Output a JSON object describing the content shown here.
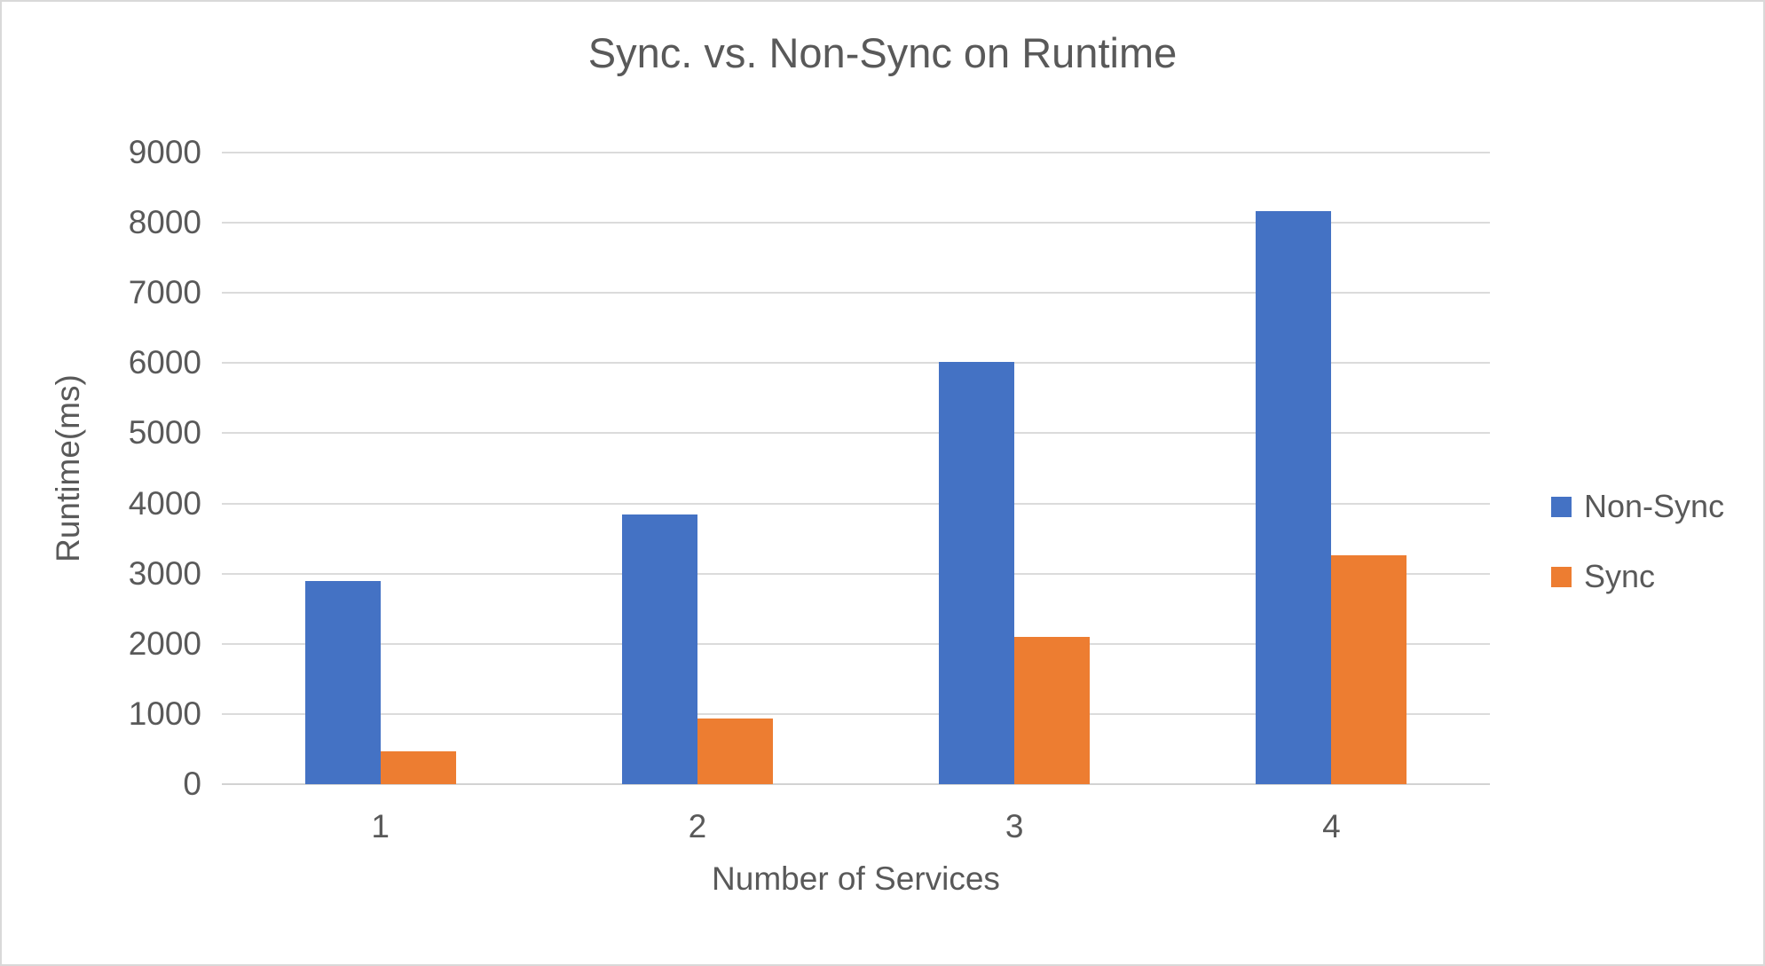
{
  "chart_data": {
    "type": "bar",
    "title": "Sync. vs. Non-Sync on Runtime",
    "xlabel": "Number of Services",
    "ylabel": "Runtime(ms)",
    "categories": [
      "1",
      "2",
      "3",
      "4"
    ],
    "series": [
      {
        "name": "Non-Sync",
        "color": "#4472C4",
        "values": [
          2900,
          3840,
          6020,
          8160
        ]
      },
      {
        "name": "Sync",
        "color": "#ED7D31",
        "values": [
          470,
          930,
          2100,
          3260
        ]
      }
    ],
    "ylim": [
      0,
      9000
    ],
    "ytick_step": 1000,
    "grid": true,
    "legend_position": "right",
    "colors": {
      "text": "#595959",
      "gridline": "#DBDBDB",
      "axis_line": "#D2D2D2",
      "border": "#D9D9D9",
      "background": "#FFFFFF"
    }
  }
}
